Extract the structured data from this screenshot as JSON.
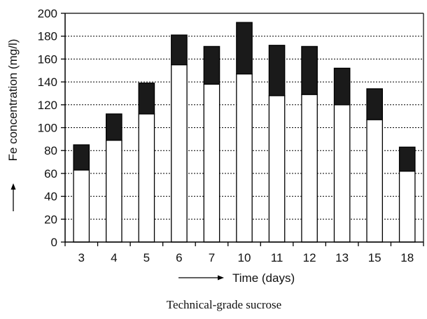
{
  "chart_data": {
    "type": "bar",
    "stacked": true,
    "categories": [
      "3",
      "4",
      "5",
      "6",
      "7",
      "10",
      "11",
      "12",
      "13",
      "15",
      "18"
    ],
    "series": [
      {
        "values": [
          63,
          89,
          112,
          155,
          138,
          147,
          128,
          129,
          120,
          107,
          62
        ],
        "color": "#ffffff"
      },
      {
        "values": [
          22,
          23,
          27,
          26,
          33,
          45,
          44,
          42,
          32,
          27,
          21
        ],
        "color": "#1a1a1a"
      }
    ],
    "xlabel": "Time (days)",
    "ylabel": "Fe concentration (mg/l)",
    "ylim": [
      0,
      200
    ],
    "yticks": [
      0,
      20,
      40,
      60,
      80,
      100,
      120,
      140,
      160,
      180,
      200
    ],
    "grid": "horizontal dotted",
    "legend": "none",
    "caption": "Technical-grade sucrose"
  }
}
